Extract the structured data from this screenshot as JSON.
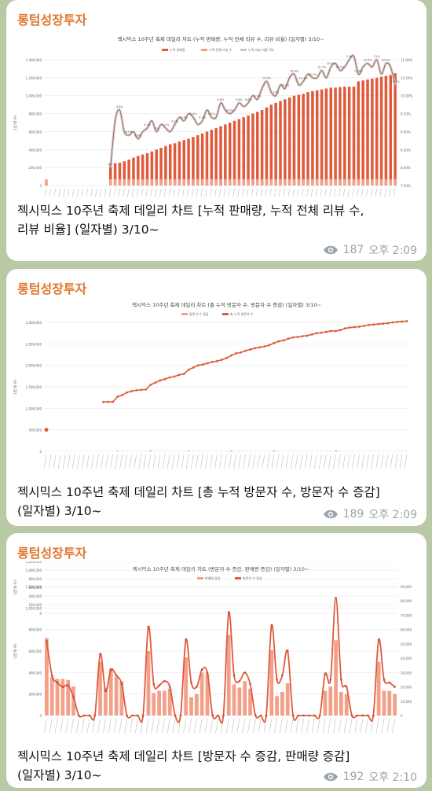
{
  "posts": [
    {
      "channel": "롱텀성장투자",
      "caption_line1": "젝시믹스 10주년 축제 데일리 차트 [누적 판매량, 누적 전체 리뷰 수,",
      "caption_line2": "리뷰 비율] (일자별) 3/10~",
      "views": "187",
      "time": "오후 2:09",
      "chart_title": "젝시믹스 10주년 축제 데일리 차트 (누적 판매량, 누적 전체 리뷰 수, 리뷰 비율) (일자별) 3/10~",
      "legend": [
        "누적 판매량",
        "누적 전체 리뷰 수",
        "누적 리뷰 비율 (%)"
      ],
      "ylabel": "(건/개 수)",
      "yticks": [
        "1,400,000",
        "1,200,000",
        "1,000,000",
        "800,000",
        "600,000",
        "400,000",
        "200,000",
        "0"
      ],
      "y2ticks": [
        "11.00%",
        "10.50%",
        "10.00%",
        "9.50%",
        "9.00%",
        "8.50%",
        "8.00%",
        "7.50%"
      ]
    },
    {
      "channel": "롱텀성장투자",
      "caption_line1": "젝시믹스 10주년 축제 데일리 차트 [총 누적 방문자 수, 방문자 수 증감]",
      "caption_line2": "(일자별) 3/10~",
      "views": "189",
      "time": "오후 2:09",
      "chart_title": "젝시믹스 10주년 축제 데일리 차트 (총 누적 방문자 수, 방문자 수 증감) (일자별) 3/10~",
      "legend": [
        "방문자 수 증감",
        "총 누적 방문자 수"
      ],
      "ylabel": "(건/개 수)",
      "yticks": [
        "3,000,000",
        "2,500,000",
        "2,000,000",
        "1,500,000",
        "1,000,000",
        "500,000",
        "0"
      ]
    },
    {
      "channel": "롱텀성장투자",
      "caption_line1": "젝시믹스 10주년 축제 데일리 차트 [방문자 수 증감, 판매량 증감]",
      "caption_line2": "(일자별) 3/10~",
      "views": "192",
      "time": "오후 2:10",
      "chart_title": "젝시믹스 10주년 축제 데일리 차트 (방문자 수 증감, 판매량 증감) (일자별) 3/10~",
      "legend": [
        "판매량 증감",
        "방문자 수 증감"
      ],
      "ylabel": "(건/개 수)",
      "yticks": [
        "1,200,000",
        "1,000,000",
        "800,000",
        "600,000",
        "400,000",
        "200,000",
        "0"
      ],
      "y2ticks": [
        "90,000",
        "80,000",
        "70,000",
        "60,000",
        "50,000",
        "40,000",
        "30,000",
        "20,000",
        "10,000",
        "0"
      ]
    }
  ],
  "chart_data": [
    {
      "type": "bar",
      "note": "cumulative sales bars with review-ratio line",
      "series": [
        {
          "name": "누적 판매량",
          "values": [
            30000,
            0,
            0,
            0,
            0,
            0,
            0,
            0,
            0,
            0,
            0,
            0,
            0,
            0,
            240000,
            250000,
            255000,
            270000,
            290000,
            310000,
            330000,
            345000,
            360000,
            380000,
            400000,
            420000,
            440000,
            460000,
            470000,
            490000,
            505000,
            520000,
            540000,
            560000,
            580000,
            600000,
            620000,
            640000,
            660000,
            680000,
            700000,
            720000,
            740000,
            760000,
            780000,
            800000,
            820000,
            840000,
            870000,
            900000,
            920000,
            940000,
            960000,
            980000,
            1000000,
            1010000,
            1020000,
            1040000,
            1050000,
            1060000,
            1070000,
            1080000,
            1090000,
            1090000,
            1095000,
            1100000,
            1100000,
            1100000,
            1160000,
            1170000,
            1180000,
            1190000,
            1200000,
            1210000,
            1220000,
            1230000,
            1250000
          ]
        },
        {
          "name": "누적 리뷰 비율 (%)",
          "values": [
            null,
            null,
            null,
            null,
            null,
            null,
            null,
            null,
            null,
            null,
            null,
            null,
            null,
            null,
            8.0,
            9.3,
            9.6,
            9.0,
            8.9,
            9.0,
            8.8,
            9.0,
            9.1,
            9.3,
            9.0,
            9.2,
            9.1,
            9.0,
            9.2,
            9.4,
            9.3,
            9.5,
            9.4,
            9.2,
            9.3,
            9.6,
            9.4,
            9.4,
            9.8,
            9.6,
            9.5,
            9.6,
            9.8,
            9.7,
            9.8,
            10.0,
            9.9,
            10.2,
            10.4,
            10.1,
            10.0,
            10.3,
            10.2,
            10.5,
            10.6,
            10.3,
            10.4,
            10.6,
            10.5,
            10.5,
            10.7,
            10.5,
            10.8,
            10.9,
            10.7,
            10.8,
            11.0,
            11.1,
            10.6,
            10.8,
            10.9,
            10.8,
            11.0,
            10.6,
            10.9,
            10.8,
            10.3
          ]
        }
      ]
    },
    {
      "type": "line",
      "note": "cumulative visitors line with visitor change bars",
      "series": [
        {
          "name": "총 누적 방문자 수",
          "values": [
            500000,
            null,
            null,
            null,
            null,
            null,
            null,
            null,
            null,
            null,
            null,
            null,
            1150000,
            1150000,
            1150000,
            1270000,
            1310000,
            1370000,
            1400000,
            1420000,
            1430000,
            1440000,
            1550000,
            1600000,
            1650000,
            1680000,
            1720000,
            1740000,
            1780000,
            1800000,
            1900000,
            1950000,
            2000000,
            2020000,
            2050000,
            2080000,
            2100000,
            2130000,
            2170000,
            2230000,
            2280000,
            2300000,
            2340000,
            2370000,
            2400000,
            2420000,
            2440000,
            2470000,
            2520000,
            2560000,
            2580000,
            2620000,
            2650000,
            2660000,
            2680000,
            2690000,
            2720000,
            2750000,
            2760000,
            2780000,
            2800000,
            2800000,
            2820000,
            2860000,
            2880000,
            2890000,
            2900000,
            2920000,
            2940000,
            2950000,
            2960000,
            2970000,
            2980000,
            3000000,
            3010000,
            3020000,
            3030000
          ]
        },
        {
          "name": "방문자 수 증감",
          "values": [
            0,
            0,
            0,
            0,
            0,
            0,
            0,
            0,
            0,
            0,
            0,
            0,
            0,
            0,
            0,
            40000,
            10000,
            10000,
            10000,
            5000,
            5000,
            5000,
            60000,
            10000,
            10000,
            5000,
            5000,
            5000,
            10000,
            5000,
            60000,
            10000,
            10000,
            5000,
            5000,
            5000,
            5000,
            10000,
            10000,
            60000,
            10000,
            5000,
            10000,
            5000,
            5000,
            5000,
            5000,
            10000,
            60000,
            10000,
            5000,
            10000,
            5000,
            5000,
            5000,
            5000,
            10000,
            10000,
            5000,
            10000,
            5000,
            60000,
            10000,
            10000,
            5000,
            5000,
            10000,
            5000,
            5000,
            10000,
            5000,
            5000,
            10000,
            5000,
            5000,
            10000,
            5000
          ]
        }
      ]
    },
    {
      "type": "bar",
      "note": "daily sales change bars with visitor change line",
      "series": [
        {
          "name": "판매량 증감",
          "values": [
            720000,
            360000,
            340000,
            340000,
            330000,
            270000,
            0,
            0,
            0,
            0,
            500000,
            260000,
            440000,
            360000,
            320000,
            0,
            0,
            0,
            0,
            600000,
            210000,
            230000,
            230000,
            250000,
            0,
            0,
            540000,
            170000,
            200000,
            400000,
            390000,
            0,
            0,
            0,
            750000,
            290000,
            260000,
            320000,
            250000,
            0,
            0,
            0,
            610000,
            180000,
            220000,
            300000,
            0,
            0,
            0,
            0,
            0,
            0,
            230000,
            270000,
            700000,
            220000,
            200000,
            0,
            0,
            0,
            0,
            0,
            500000,
            230000,
            230000,
            200000
          ]
        },
        {
          "name": "방문자 수 증감",
          "values": [
            52000,
            28000,
            23000,
            20000,
            21000,
            13000,
            0,
            0,
            0,
            0,
            43000,
            17000,
            32000,
            28000,
            22000,
            0,
            0,
            0,
            0,
            62000,
            22000,
            21000,
            24000,
            20000,
            0,
            0,
            53000,
            23000,
            20000,
            32000,
            30000,
            0,
            0,
            0,
            72000,
            28000,
            24000,
            30000,
            22000,
            0,
            0,
            0,
            63000,
            25000,
            28000,
            45000,
            0,
            0,
            0,
            0,
            0,
            0,
            29000,
            25000,
            82000,
            25000,
            20000,
            0,
            0,
            0,
            0,
            0,
            53000,
            25000,
            23000,
            20000
          ]
        }
      ]
    }
  ]
}
